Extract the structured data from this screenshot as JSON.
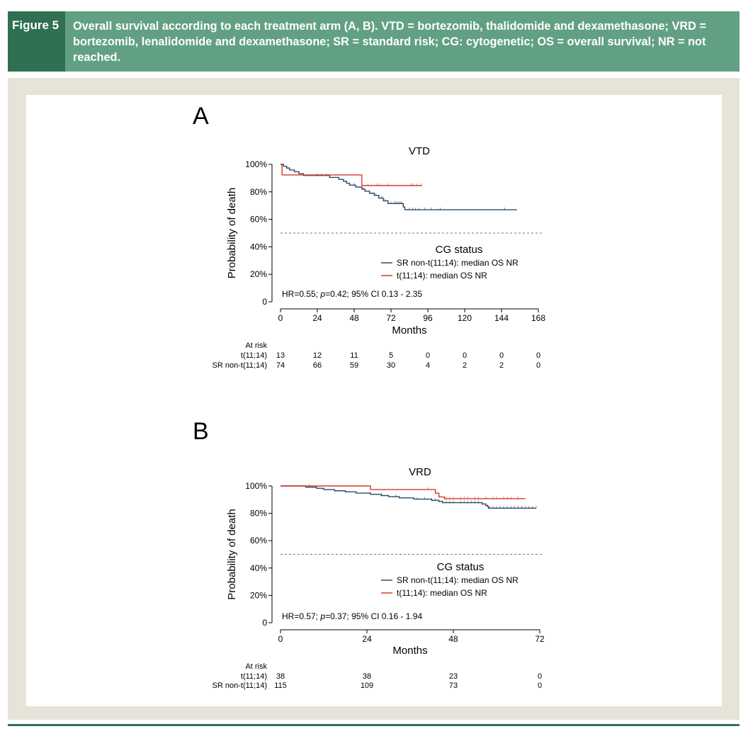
{
  "figure": {
    "label": "Figure 5",
    "caption": "Overall survival according to each treatment arm (A, B). VTD = bortezomib, thalidomide and dexamethasone; VRD = bortezomib, lenalidomide and dexamethasone; SR = standard risk; CG: cytogenetic; OS = overall survival; NR = not reached."
  },
  "chart_data": [
    {
      "type": "line",
      "panel_letter": "A",
      "title": "VTD",
      "xlabel": "Months",
      "ylabel": "Probability of death",
      "xlim": [
        0,
        168
      ],
      "ylim": [
        0,
        1
      ],
      "x_ticks": [
        0,
        24,
        48,
        72,
        96,
        120,
        144,
        168
      ],
      "y_ticks": [
        0,
        0.2,
        0.4,
        0.6,
        0.8,
        1.0
      ],
      "y_tick_labels": [
        "0",
        "20%",
        "40%",
        "60%",
        "80%",
        "100%"
      ],
      "reference_line": 0.5,
      "legend_title": "CG status",
      "annotation": {
        "pre": "HR=0.55; ",
        "italic": "p",
        "post": "=0.42; 95% CI 0.13 - 2.35"
      },
      "series": [
        {
          "name": "SR non-t(11;14): median OS NR",
          "color": "#2e4a66",
          "steps": [
            [
              0,
              1.0
            ],
            [
              2,
              0.986
            ],
            [
              4,
              0.973
            ],
            [
              6,
              0.959
            ],
            [
              9,
              0.946
            ],
            [
              12,
              0.932
            ],
            [
              15,
              0.919
            ],
            [
              32,
              0.905
            ],
            [
              38,
              0.891
            ],
            [
              41,
              0.877
            ],
            [
              43,
              0.863
            ],
            [
              45,
              0.849
            ],
            [
              49,
              0.835
            ],
            [
              53,
              0.82
            ],
            [
              55,
              0.805
            ],
            [
              58,
              0.79
            ],
            [
              61,
              0.775
            ],
            [
              64,
              0.755
            ],
            [
              67,
              0.735
            ],
            [
              70,
              0.715
            ],
            [
              80,
              0.69
            ],
            [
              81,
              0.67
            ],
            [
              154,
              0.67
            ]
          ],
          "censors": [
            24,
            27,
            30,
            48,
            54,
            58,
            62,
            64,
            66,
            67,
            68,
            70,
            72,
            74,
            75,
            76,
            77,
            78,
            79,
            84,
            86,
            88,
            90,
            94,
            98,
            104,
            146
          ]
        },
        {
          "name": "t(11;14): median OS NR",
          "color": "#d73a2c",
          "steps": [
            [
              0,
              1.0
            ],
            [
              1,
              0.923
            ],
            [
              52,
              0.923
            ],
            [
              53,
              0.846
            ],
            [
              92,
              0.846
            ]
          ],
          "censors": [
            57,
            63,
            65,
            70,
            85,
            86,
            89,
            92
          ]
        }
      ],
      "at_risk": {
        "title": "At risk",
        "times": [
          0,
          24,
          48,
          72,
          96,
          120,
          144,
          168
        ],
        "rows": [
          {
            "label": "t(11;14)",
            "values": [
              "13",
              "12",
              "11",
              "5",
              "0",
              "0",
              "0",
              "0"
            ]
          },
          {
            "label": "SR non-t(11;14)",
            "values": [
              "74",
              "66",
              "59",
              "30",
              "4",
              "2",
              "2",
              "0"
            ]
          }
        ]
      }
    },
    {
      "type": "line",
      "panel_letter": "B",
      "title": "VRD",
      "xlabel": "Months",
      "ylabel": "Probability of death",
      "xlim": [
        0,
        72
      ],
      "ylim": [
        0,
        1
      ],
      "x_ticks": [
        0,
        24,
        48,
        72
      ],
      "y_ticks": [
        0,
        0.2,
        0.4,
        0.6,
        0.8,
        1.0
      ],
      "y_tick_labels": [
        "0",
        "20%",
        "40%",
        "60%",
        "80%",
        "100%"
      ],
      "reference_line": 0.5,
      "legend_title": "CG status",
      "annotation": {
        "pre": "HR=0.57; ",
        "italic": "p",
        "post": "=0.37; 95% CI 0.16 - 1.94"
      },
      "series": [
        {
          "name": "SR non-t(11;14): median OS NR",
          "color": "#2e4a66",
          "steps": [
            [
              0,
              1.0
            ],
            [
              7,
              0.991
            ],
            [
              10,
              0.983
            ],
            [
              12,
              0.974
            ],
            [
              15,
              0.965
            ],
            [
              18,
              0.957
            ],
            [
              21,
              0.948
            ],
            [
              25,
              0.939
            ],
            [
              28,
              0.93
            ],
            [
              30,
              0.922
            ],
            [
              33,
              0.913
            ],
            [
              37,
              0.904
            ],
            [
              42,
              0.895
            ],
            [
              44,
              0.887
            ],
            [
              45,
              0.878
            ],
            [
              56,
              0.868
            ],
            [
              57,
              0.858
            ],
            [
              57.5,
              0.848
            ],
            [
              57.8,
              0.838
            ],
            [
              71,
              0.838
            ]
          ],
          "censors": [
            28,
            32,
            38,
            40,
            42,
            43,
            44,
            45,
            46,
            47,
            48,
            50,
            51,
            52,
            53,
            54,
            55,
            56,
            57,
            58,
            59,
            60,
            61,
            62,
            63,
            64,
            65,
            66,
            67,
            68,
            69,
            70,
            71
          ]
        },
        {
          "name": "t(11;14): median OS NR",
          "color": "#d73a2c",
          "steps": [
            [
              0,
              1.0
            ],
            [
              24.5,
              1.0
            ],
            [
              25,
              0.974
            ],
            [
              42,
              0.974
            ],
            [
              43,
              0.947
            ],
            [
              44,
              0.92
            ],
            [
              45,
              0.92
            ],
            [
              45.5,
              0.907
            ],
            [
              68,
              0.907
            ]
          ],
          "censors": [
            8,
            41,
            43,
            46,
            47,
            48,
            50,
            51,
            52,
            54,
            55,
            57,
            59,
            60,
            62,
            63,
            64,
            66
          ]
        }
      ],
      "at_risk": {
        "title": "At risk",
        "times": [
          0,
          24,
          48,
          72
        ],
        "rows": [
          {
            "label": "t(11;14)",
            "values": [
              "38",
              "38",
              "23",
              "0"
            ]
          },
          {
            "label": "SR non-t(11;14)",
            "values": [
              "115",
              "109",
              "73",
              "0"
            ]
          }
        ]
      }
    }
  ]
}
